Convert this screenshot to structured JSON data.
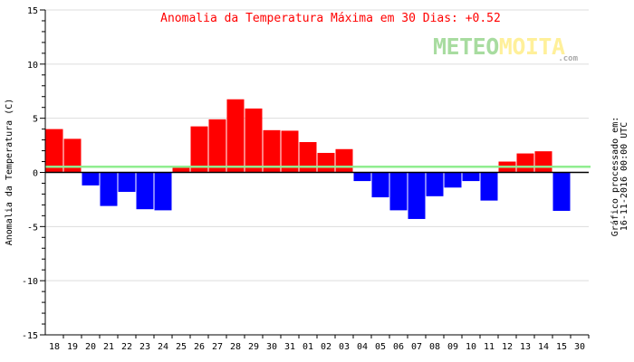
{
  "chart_data": {
    "type": "bar",
    "title": "Anomalia da Temperatura Máxima em 30 Dias: +0.52",
    "ylabel": "Anomalia da Temperatura (C)",
    "xlabel": "",
    "ylim": [
      -15,
      15
    ],
    "yticks": [
      15,
      10,
      5,
      0,
      -5,
      -10,
      -15
    ],
    "grid": true,
    "categories": [
      "18",
      "19",
      "20",
      "21",
      "22",
      "23",
      "24",
      "25",
      "26",
      "27",
      "28",
      "29",
      "30",
      "31",
      "01",
      "02",
      "03",
      "04",
      "05",
      "06",
      "07",
      "08",
      "09",
      "10",
      "11",
      "12",
      "13",
      "14",
      "15",
      "30"
    ],
    "values": [
      4.0,
      3.1,
      -1.2,
      -3.1,
      -1.8,
      -3.4,
      -3.5,
      0.5,
      4.25,
      4.9,
      6.75,
      5.9,
      3.9,
      3.85,
      2.8,
      1.8,
      2.15,
      -0.8,
      -2.3,
      -3.5,
      -4.3,
      -2.2,
      -1.4,
      -0.8,
      -2.6,
      1.0,
      1.75,
      1.95,
      -3.55,
      null
    ],
    "mean_line": 0.52,
    "colors": {
      "positive": "#ff0000",
      "negative": "#0000ff",
      "mean_line": "#90ee90",
      "title": "#ff0000",
      "grid": "#dddddd"
    }
  },
  "logo": {
    "part1": "METEO",
    "part2": "MOITA",
    "suffix": ".com"
  },
  "side_note": {
    "line1": "Gráfico processado em:",
    "line2": "16-11-2016 00:00 UTC"
  }
}
